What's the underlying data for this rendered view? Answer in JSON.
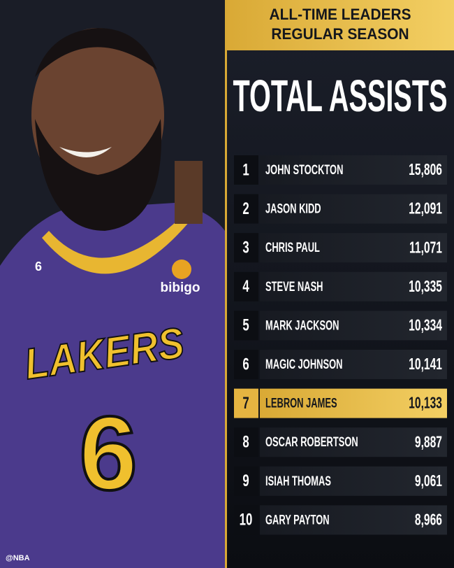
{
  "photo": {
    "jersey_text": "LAKERS",
    "jersey_number": "6",
    "sponsor": "bibigo",
    "credit": "@NBA"
  },
  "header": {
    "line1": "ALL-TIME LEADERS",
    "line2": "REGULAR SEASON"
  },
  "title": "TOTAL ASSISTS",
  "table": {
    "rows": [
      {
        "rank": "1",
        "name": "JOHN STOCKTON",
        "total": "15,806"
      },
      {
        "rank": "2",
        "name": "JASON KIDD",
        "total": "12,091"
      },
      {
        "rank": "3",
        "name": "CHRIS PAUL",
        "total": "11,071"
      },
      {
        "rank": "4",
        "name": "STEVE NASH",
        "total": "10,335"
      },
      {
        "rank": "5",
        "name": "MARK JACKSON",
        "total": "10,334"
      },
      {
        "rank": "6",
        "name": "MAGIC JOHNSON",
        "total": "10,141"
      },
      {
        "rank": "7",
        "name": "LEBRON JAMES",
        "total": "10,133",
        "highlight": true
      },
      {
        "rank": "8",
        "name": "OSCAR ROBERTSON",
        "total": "9,887"
      },
      {
        "rank": "9",
        "name": "ISIAH THOMAS",
        "total": "9,061"
      },
      {
        "rank": "10",
        "name": "GARY PAYTON",
        "total": "8,966"
      }
    ]
  }
}
